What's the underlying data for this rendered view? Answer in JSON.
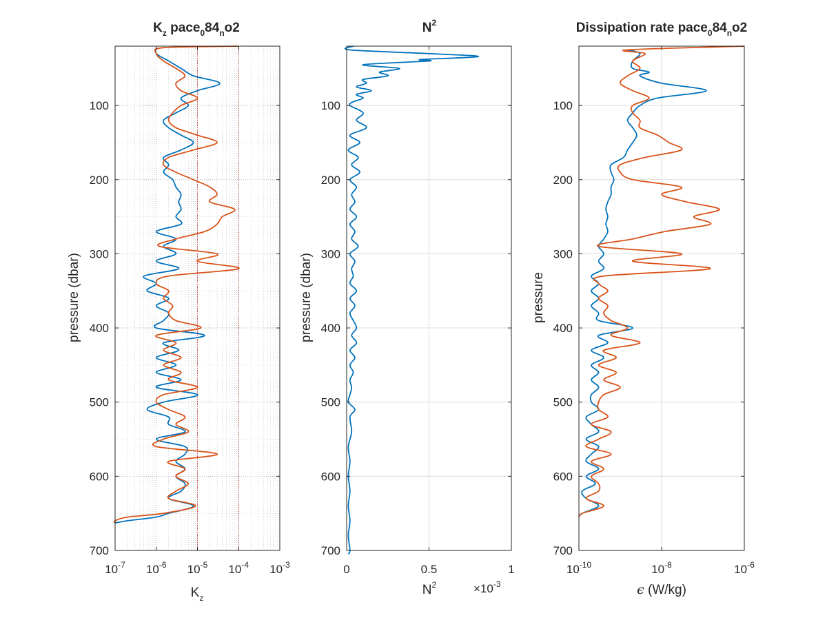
{
  "chart_data": [
    {
      "id": "kz",
      "type": "line",
      "title": {
        "main": "K",
        "sub1": "z",
        "mid": " pace",
        "sub2": "0",
        "mid2": "84",
        "sub3": "n",
        "end": "o2"
      },
      "xlabel": {
        "main": "K",
        "sub": "z"
      },
      "ylabel": "pressure (dbar)",
      "xscale": "log",
      "xlim": [
        1e-07,
        0.001
      ],
      "ylim": [
        700,
        20
      ],
      "xticks": [
        1e-07,
        1e-06,
        1e-05,
        0.0001,
        0.001
      ],
      "xtick_labels": [
        {
          "base": "10",
          "exp": "-7"
        },
        {
          "base": "10",
          "exp": "-6"
        },
        {
          "base": "10",
          "exp": "-5"
        },
        {
          "base": "10",
          "exp": "-4"
        },
        {
          "base": "10",
          "exp": "-3"
        }
      ],
      "yticks": [
        100,
        200,
        300,
        400,
        500,
        600,
        700
      ],
      "ytick_labels": [
        "100",
        "200",
        "300",
        "400",
        "500",
        "600",
        "700"
      ],
      "grid": "major+minor, dotted",
      "reference_lines": [
        1e-05,
        0.0001
      ],
      "series": [
        {
          "color": "#0072BD",
          "pressure": [
            22,
            30,
            40,
            50,
            60,
            70,
            80,
            90,
            100,
            110,
            120,
            130,
            140,
            150,
            160,
            170,
            180,
            190,
            200,
            210,
            220,
            230,
            240,
            250,
            260,
            270,
            280,
            290,
            300,
            310,
            320,
            330,
            340,
            350,
            360,
            370,
            380,
            390,
            400,
            410,
            420,
            430,
            440,
            450,
            460,
            470,
            480,
            490,
            500,
            510,
            520,
            530,
            540,
            550,
            560,
            570,
            580,
            590,
            600,
            610,
            620,
            630,
            640,
            650,
            655,
            660,
            663
          ],
          "values": [
            1e-06,
            1e-06,
            2e-06,
            4e-06,
            8e-06,
            3.5e-05,
            1e-05,
            4e-06,
            6e-06,
            3e-06,
            1.5e-06,
            2e-06,
            4e-06,
            8e-06,
            4e-06,
            1.5e-06,
            2e-06,
            1.5e-06,
            2.5e-06,
            3e-06,
            4e-06,
            3.5e-06,
            4e-06,
            3e-06,
            4e-06,
            1e-06,
            3e-06,
            1.5e-06,
            3e-06,
            1e-06,
            3.5e-06,
            5e-07,
            1e-06,
            6e-07,
            2e-06,
            1e-06,
            2e-06,
            1.5e-06,
            1e-06,
            1.5e-05,
            1.5e-06,
            3.5e-06,
            1e-06,
            3e-06,
            1e-06,
            4e-06,
            1e-06,
            1e-05,
            1.5e-06,
            6e-07,
            2e-06,
            2e-06,
            5e-06,
            1e-06,
            5e-06,
            5e-06,
            3e-06,
            5e-06,
            3e-06,
            5e-06,
            4e-06,
            2e-06,
            8e-06,
            2e-06,
            1e-06,
            2e-07,
            1e-07
          ]
        },
        {
          "color": "#D95319",
          "pressure": [
            20,
            22,
            30,
            40,
            50,
            60,
            70,
            80,
            90,
            100,
            110,
            120,
            130,
            140,
            150,
            160,
            170,
            180,
            190,
            200,
            210,
            220,
            230,
            240,
            250,
            260,
            270,
            280,
            290,
            300,
            310,
            320,
            330,
            340,
            350,
            360,
            370,
            380,
            390,
            400,
            410,
            420,
            430,
            440,
            450,
            460,
            470,
            480,
            490,
            500,
            510,
            520,
            530,
            540,
            550,
            560,
            570,
            580,
            590,
            600,
            610,
            620,
            630,
            640,
            650,
            655,
            660,
            663
          ],
          "values": [
            0.0001,
            1.5e-06,
            1e-06,
            1.5e-06,
            3e-06,
            5e-06,
            3e-06,
            4e-06,
            1e-05,
            4e-06,
            2.5e-06,
            2e-06,
            3e-06,
            1e-05,
            3e-05,
            8e-06,
            2e-06,
            1.5e-06,
            3e-06,
            8e-06,
            2e-05,
            3e-05,
            2e-05,
            8e-05,
            4e-05,
            3e-05,
            1.5e-05,
            3e-06,
            1.2e-06,
            3e-05,
            1e-05,
            0.0001,
            2e-06,
            1e-06,
            2e-06,
            1.5e-06,
            2.5e-06,
            2e-06,
            3e-06,
            1.2e-05,
            1e-06,
            3e-06,
            1.5e-06,
            4e-06,
            1.5e-06,
            4e-06,
            2e-06,
            1e-05,
            1.5e-06,
            1e-06,
            2e-06,
            5e-06,
            3e-06,
            6e-06,
            1.5e-06,
            1e-06,
            3e-05,
            2e-06,
            5e-06,
            3e-06,
            6e-06,
            3e-06,
            2e-06,
            9e-06,
            1.5e-06,
            2e-07,
            1e-07,
            1e-07
          ]
        }
      ]
    },
    {
      "id": "n2",
      "type": "line",
      "title": {
        "main": "N",
        "sup": "2"
      },
      "xlabel": {
        "main": "N",
        "sup": "2"
      },
      "ylabel": "pressure (dbar)",
      "multiplier": {
        "main": "×10",
        "exp": "-3"
      },
      "xscale": "linear",
      "xlim": [
        0,
        1
      ],
      "ylim": [
        700,
        20
      ],
      "xticks": [
        0,
        0.5,
        1
      ],
      "xtick_labels": [
        "0",
        "0.5",
        "1"
      ],
      "yticks": [
        100,
        200,
        300,
        400,
        500,
        600,
        700
      ],
      "ytick_labels": [
        "100",
        "200",
        "300",
        "400",
        "500",
        "600",
        "700"
      ],
      "grid": "major",
      "series": [
        {
          "color": "#0072BD",
          "pressure": [
            20,
            25,
            30,
            34,
            38,
            40,
            45,
            50,
            55,
            60,
            65,
            70,
            75,
            80,
            85,
            90,
            95,
            100,
            110,
            120,
            130,
            140,
            150,
            160,
            170,
            180,
            190,
            200,
            210,
            220,
            230,
            240,
            250,
            260,
            270,
            280,
            290,
            300,
            310,
            320,
            330,
            340,
            350,
            360,
            370,
            380,
            390,
            400,
            410,
            420,
            430,
            440,
            450,
            460,
            470,
            480,
            490,
            500,
            510,
            520,
            540,
            560,
            580,
            600,
            620,
            640,
            660,
            680,
            700,
            705
          ],
          "values": [
            0.04,
            0.02,
            0.5,
            0.8,
            0.45,
            0.5,
            0.1,
            0.32,
            0.2,
            0.25,
            0.1,
            0.12,
            0.06,
            0.15,
            0.06,
            0.1,
            0.04,
            0.02,
            0.1,
            0.06,
            0.12,
            0.02,
            0.08,
            0.01,
            0.07,
            0.03,
            0.08,
            0.02,
            0.06,
            0.03,
            0.05,
            0.02,
            0.06,
            0.02,
            0.05,
            0.03,
            0.07,
            0.02,
            0.05,
            0.03,
            0.04,
            0.02,
            0.06,
            0.02,
            0.05,
            0.02,
            0.04,
            0.06,
            0.03,
            0.06,
            0.02,
            0.05,
            0.02,
            0.04,
            0.02,
            0.03,
            0.02,
            0.01,
            0.05,
            0.02,
            0.03,
            0.01,
            0.02,
            0.01,
            0.02,
            0.01,
            0.02,
            0.01,
            0.02,
            0.01
          ]
        }
      ]
    },
    {
      "id": "eps",
      "type": "line",
      "title": {
        "main": "Dissipation rate pace",
        "sub1": "0",
        "mid": "84",
        "sub2": "n",
        "end": "o2"
      },
      "xlabel": {
        "symbol": "ϵ",
        "rest": " (W/kg)"
      },
      "ylabel": "pressure",
      "xscale": "log",
      "xlim": [
        1e-10,
        1e-06
      ],
      "ylim": [
        700,
        20
      ],
      "xticks": [
        1e-10,
        1e-08,
        1e-06
      ],
      "xtick_labels": [
        {
          "base": "10",
          "exp": "-10"
        },
        {
          "base": "10",
          "exp": "-8"
        },
        {
          "base": "10",
          "exp": "-6"
        }
      ],
      "yticks": [
        100,
        200,
        300,
        400,
        500,
        600,
        700
      ],
      "ytick_labels": [
        "100",
        "200",
        "300",
        "400",
        "500",
        "600",
        "700"
      ],
      "grid": "major",
      "series": [
        {
          "color": "#0072BD",
          "pressure": [
            25,
            30,
            40,
            50,
            55,
            60,
            70,
            80,
            90,
            100,
            110,
            120,
            130,
            140,
            150,
            160,
            170,
            180,
            190,
            200,
            210,
            220,
            230,
            240,
            250,
            260,
            270,
            280,
            290,
            300,
            310,
            320,
            330,
            340,
            350,
            360,
            370,
            380,
            390,
            400,
            410,
            420,
            430,
            440,
            450,
            460,
            470,
            480,
            490,
            500,
            510,
            520,
            530,
            540,
            550,
            560,
            570,
            580,
            590,
            600,
            610,
            620,
            630,
            640,
            650,
            655
          ],
          "values": [
            1.5e-09,
            3e-09,
            2e-09,
            2e-09,
            5e-09,
            3e-09,
            1e-08,
            1.2e-07,
            8e-09,
            3e-09,
            2e-09,
            1.5e-09,
            2e-09,
            2.5e-09,
            2e-09,
            1.5e-09,
            1.2e-09,
            6e-10,
            6e-10,
            7e-10,
            6e-10,
            6e-10,
            5e-10,
            4.5e-10,
            5e-10,
            4.5e-10,
            5e-10,
            4e-10,
            3e-10,
            4e-10,
            3e-10,
            4e-10,
            2e-10,
            3e-10,
            2e-10,
            3e-10,
            2e-10,
            3e-10,
            3e-10,
            2e-09,
            3e-10,
            5e-10,
            2e-10,
            4e-10,
            2e-10,
            3e-10,
            2e-10,
            3e-10,
            2e-10,
            2e-10,
            3e-10,
            1.5e-10,
            2e-10,
            3e-10,
            1.5e-10,
            3e-10,
            2e-10,
            1.5e-10,
            3e-10,
            1.5e-10,
            2.5e-10,
            1.2e-10,
            1.5e-10,
            3e-10,
            1.2e-10,
            1e-10
          ]
        },
        {
          "color": "#D95319",
          "pressure": [
            20,
            25,
            30,
            40,
            50,
            60,
            70,
            80,
            90,
            100,
            110,
            120,
            130,
            140,
            150,
            160,
            170,
            180,
            190,
            200,
            210,
            220,
            230,
            240,
            250,
            260,
            270,
            280,
            290,
            300,
            310,
            320,
            330,
            340,
            350,
            360,
            370,
            380,
            390,
            400,
            410,
            420,
            430,
            440,
            450,
            460,
            470,
            480,
            490,
            500,
            510,
            520,
            530,
            540,
            550,
            560,
            570,
            580,
            590,
            600,
            610,
            620,
            630,
            640,
            650,
            655
          ],
          "values": [
            1e-06,
            1.5e-09,
            4e-09,
            2e-09,
            3e-09,
            1.5e-09,
            1e-09,
            2e-09,
            5e-09,
            2e-09,
            2e-09,
            3e-09,
            3e-09,
            8e-09,
            1.5e-08,
            3e-08,
            4e-09,
            1e-09,
            1e-09,
            2e-09,
            3e-08,
            1e-08,
            4e-08,
            2.5e-07,
            6e-08,
            1.5e-07,
            1.2e-08,
            2e-09,
            3e-10,
            3e-08,
            2e-09,
            1.5e-07,
            4e-10,
            3e-10,
            5e-10,
            3e-10,
            5e-10,
            4e-10,
            6e-10,
            1.5e-09,
            6e-10,
            3e-09,
            4e-10,
            8e-10,
            3e-10,
            8e-10,
            4e-10,
            1e-09,
            4e-10,
            3e-10,
            3e-10,
            5e-10,
            2e-10,
            6e-10,
            3e-10,
            1.5e-10,
            6e-10,
            2e-10,
            4e-10,
            2e-10,
            3e-10,
            3e-10,
            1.5e-10,
            4e-10,
            1.2e-10,
            1e-10
          ]
        }
      ]
    }
  ]
}
